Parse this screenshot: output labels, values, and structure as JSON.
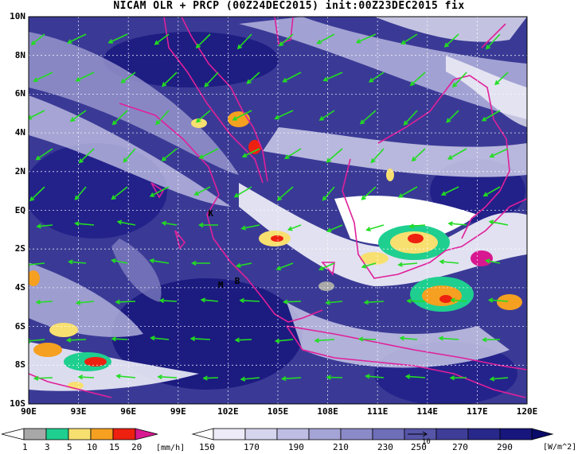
{
  "title": "NICAM OLR + PRCP (00Z24DEC2015) init:00Z23DEC2015 fix",
  "map": {
    "lat_labels": [
      "10N",
      "8N",
      "6N",
      "4N",
      "2N",
      "EQ",
      "2S",
      "4S",
      "6S",
      "8S",
      "10S"
    ],
    "lon_labels": [
      "90E",
      "93E",
      "96E",
      "99E",
      "102E",
      "105E",
      "108E",
      "111E",
      "114E",
      "117E",
      "120E"
    ],
    "lon_range": [
      90,
      120
    ],
    "lat_range": [
      -10,
      10
    ],
    "station_markers": [
      {
        "label": "K",
        "lon": 100.8,
        "lat": -0.3
      },
      {
        "label": "M",
        "lon": 101.4,
        "lat": -4.0
      },
      {
        "label": "B",
        "lon": 102.4,
        "lat": -3.8
      }
    ],
    "colors": {
      "coast": "#e0209a",
      "wind_vector": "#22dd22",
      "olr_cold_cloud": "#ffffff",
      "olr_clear": "#1a1a80"
    }
  },
  "precip_colorbar": {
    "ticks": [
      "1",
      "3",
      "5",
      "10",
      "15",
      "20"
    ],
    "unit": "[mm/h]",
    "colors": [
      "#ffffff",
      "#a8a8a8",
      "#1fcf8f",
      "#f8e070",
      "#f5a020",
      "#ee2010",
      "#d81890"
    ]
  },
  "olr_colorbar": {
    "ticks": [
      "150",
      "170",
      "190",
      "210",
      "230",
      "250",
      "270",
      "290"
    ],
    "unit": "[W/m^2]",
    "colors": [
      "#ffffff",
      "#ecebf7",
      "#d6d5ee",
      "#bebde3",
      "#a5a4d6",
      "#8b8ac8",
      "#6f6eb8",
      "#5655a8",
      "#3e3d98",
      "#28278a",
      "#17167d"
    ],
    "reference_vector_label": "10"
  }
}
